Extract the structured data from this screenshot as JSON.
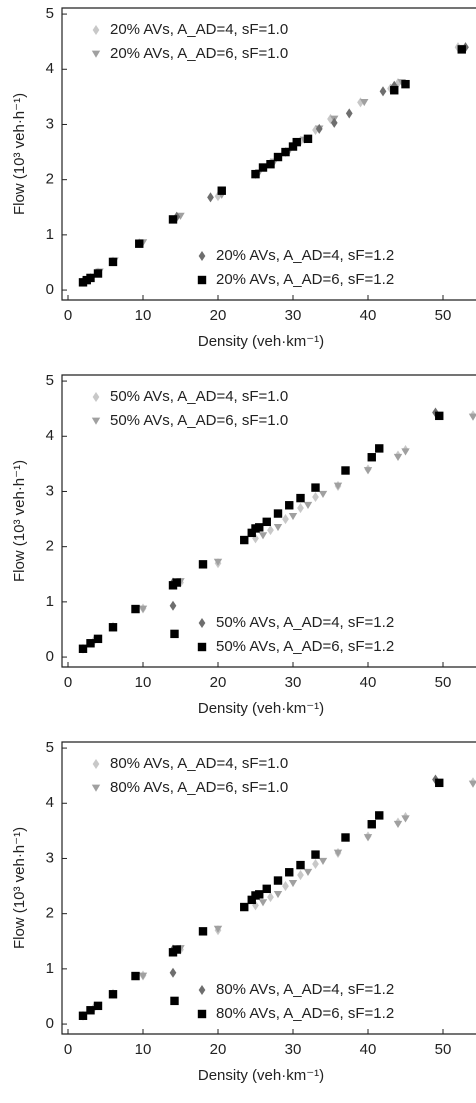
{
  "chart_data": [
    {
      "type": "scatter",
      "x_label": "Density (veh·km⁻¹)",
      "y_label": "Flow (10³ veh·h⁻¹)",
      "xlim": [
        -0.8,
        54.4
      ],
      "ylim": [
        -0.18,
        5.11
      ],
      "xticks": [
        0,
        10,
        20,
        30,
        40,
        50
      ],
      "yticks": [
        0,
        1,
        2,
        3,
        4,
        5
      ],
      "series": [
        {
          "name": "20% AVs, A_AD=4, sF=1.0",
          "color": "#c8c8c8",
          "marker": "diamond",
          "legend_loc": "upper left",
          "x": [
            2,
            3,
            4,
            6,
            9.5,
            14.5,
            20,
            25,
            27,
            29,
            31,
            33,
            35,
            39,
            43,
            44,
            52
          ],
          "y": [
            0.15,
            0.22,
            0.32,
            0.52,
            0.85,
            1.32,
            1.7,
            2.1,
            2.3,
            2.5,
            2.7,
            2.9,
            3.1,
            3.4,
            3.65,
            3.75,
            4.4
          ]
        },
        {
          "name": "20% AVs, A_AD=6, sF=1.0",
          "color": "#a0a0a0",
          "marker": "triangle",
          "legend_loc": "upper left",
          "x": [
            2.2,
            3.3,
            4.2,
            6.2,
            10,
            15,
            20.5,
            25.5,
            27.5,
            29.5,
            31.5,
            33.5,
            35.5,
            39.5,
            43.5,
            44.5,
            52.5
          ],
          "y": [
            0.15,
            0.23,
            0.33,
            0.53,
            0.86,
            1.34,
            1.72,
            2.13,
            2.32,
            2.52,
            2.72,
            2.92,
            3.1,
            3.4,
            3.66,
            3.76,
            4.38
          ]
        },
        {
          "name": "20% AVs, A_AD=4, sF=1.2",
          "color": "#6e6e6e",
          "marker": "diamond",
          "legend_loc": "lower right",
          "x": [
            14.5,
            19,
            33.5,
            35.5,
            37.5,
            42,
            43.5,
            53
          ],
          "y": [
            1.33,
            1.68,
            2.92,
            3.03,
            3.2,
            3.6,
            3.7,
            4.4
          ]
        },
        {
          "name": "20% AVs, A_AD=6, sF=1.2",
          "color": "#000000",
          "marker": "square",
          "legend_loc": "lower right",
          "x": [
            2,
            2.5,
            3,
            4,
            6,
            9.5,
            14,
            20.5,
            25,
            26,
            27,
            28,
            29,
            30,
            30.5,
            32,
            43.5,
            45,
            52.5
          ],
          "y": [
            0.14,
            0.18,
            0.22,
            0.3,
            0.51,
            0.84,
            1.28,
            1.8,
            2.1,
            2.22,
            2.28,
            2.41,
            2.5,
            2.6,
            2.68,
            2.74,
            3.62,
            3.73,
            4.36
          ]
        }
      ]
    },
    {
      "type": "scatter",
      "x_label": "Density (veh·km⁻¹)",
      "y_label": "Flow (10³ veh·h⁻¹)",
      "xlim": [
        -0.8,
        54.4
      ],
      "ylim": [
        -0.18,
        5.11
      ],
      "xticks": [
        0,
        10,
        20,
        30,
        40,
        50
      ],
      "yticks": [
        0,
        1,
        2,
        3,
        4,
        5
      ],
      "series": [
        {
          "name": "50% AVs, A_AD=4, sF=1.0",
          "color": "#c8c8c8",
          "marker": "diamond",
          "legend_loc": "upper left",
          "x": [
            2,
            3.5,
            6,
            10,
            15,
            20,
            25,
            27,
            29,
            31,
            33,
            36,
            40,
            44,
            45,
            54
          ],
          "y": [
            0.15,
            0.3,
            0.55,
            0.88,
            1.35,
            1.7,
            2.15,
            2.3,
            2.5,
            2.7,
            2.9,
            3.1,
            3.4,
            3.65,
            3.75,
            4.38
          ]
        },
        {
          "name": "50% AVs, A_AD=6, sF=1.0",
          "color": "#a0a0a0",
          "marker": "triangle",
          "legend_loc": "upper left",
          "x": [
            2,
            4,
            6,
            10,
            15,
            20,
            26,
            28,
            30,
            32,
            34,
            36,
            40,
            44,
            45,
            54
          ],
          "y": [
            0.15,
            0.32,
            0.54,
            0.87,
            1.37,
            1.72,
            2.2,
            2.35,
            2.55,
            2.75,
            2.95,
            3.1,
            3.38,
            3.62,
            3.72,
            4.35
          ]
        },
        {
          "name": "50% AVs, A_AD=4, sF=1.2",
          "color": "#6e6e6e",
          "marker": "diamond",
          "legend_loc": "lower right",
          "x": [
            14,
            14,
            49
          ],
          "y": [
            0.93,
            1.35,
            4.43
          ]
        },
        {
          "name": "50% AVs, A_AD=6, sF=1.2",
          "color": "#000000",
          "marker": "square",
          "legend_loc": "lower right",
          "x": [
            2,
            3,
            4,
            6,
            9,
            14,
            14.2,
            14.5,
            18,
            23.5,
            24.5,
            25,
            25.5,
            26.5,
            28,
            29.5,
            31,
            33,
            37,
            40.5,
            41.5,
            49.5
          ],
          "y": [
            0.15,
            0.25,
            0.33,
            0.54,
            0.87,
            1.3,
            0.42,
            1.35,
            1.68,
            2.12,
            2.25,
            2.33,
            2.35,
            2.45,
            2.6,
            2.75,
            2.88,
            3.07,
            3.38,
            3.62,
            3.78,
            4.37
          ]
        }
      ]
    },
    {
      "type": "scatter",
      "x_label": "Density (veh·km⁻¹)",
      "y_label": "Flow (10³ veh·h⁻¹)",
      "xlim": [
        -0.8,
        54.4
      ],
      "ylim": [
        -0.18,
        5.11
      ],
      "xticks": [
        0,
        10,
        20,
        30,
        40,
        50
      ],
      "yticks": [
        0,
        1,
        2,
        3,
        4,
        5
      ],
      "series": [
        {
          "name": "80% AVs, A_AD=4, sF=1.0",
          "color": "#c8c8c8",
          "marker": "diamond",
          "legend_loc": "upper left",
          "x": [
            2,
            3.5,
            6,
            10,
            15,
            20,
            25,
            27,
            29,
            31,
            33,
            36,
            40,
            44,
            45,
            54
          ],
          "y": [
            0.15,
            0.3,
            0.55,
            0.88,
            1.35,
            1.7,
            2.15,
            2.3,
            2.5,
            2.7,
            2.9,
            3.1,
            3.4,
            3.65,
            3.75,
            4.38
          ]
        },
        {
          "name": "80% AVs, A_AD=6, sF=1.0",
          "color": "#a0a0a0",
          "marker": "triangle",
          "legend_loc": "upper left",
          "x": [
            2,
            4,
            6,
            10,
            15,
            20,
            26,
            28,
            30,
            32,
            34,
            36,
            40,
            44,
            45,
            54
          ],
          "y": [
            0.15,
            0.32,
            0.54,
            0.87,
            1.37,
            1.72,
            2.2,
            2.35,
            2.55,
            2.75,
            2.95,
            3.1,
            3.38,
            3.62,
            3.72,
            4.35
          ]
        },
        {
          "name": "80% AVs, A_AD=4, sF=1.2",
          "color": "#6e6e6e",
          "marker": "diamond",
          "legend_loc": "lower right",
          "x": [
            14,
            14,
            49
          ],
          "y": [
            0.93,
            1.35,
            4.43
          ]
        },
        {
          "name": "80% AVs, A_AD=6, sF=1.2",
          "color": "#000000",
          "marker": "square",
          "legend_loc": "lower right",
          "x": [
            2,
            3,
            4,
            6,
            9,
            14,
            14.2,
            14.5,
            18,
            23.5,
            24.5,
            25,
            25.5,
            26.5,
            28,
            29.5,
            31,
            33,
            37,
            40.5,
            41.5,
            49.5
          ],
          "y": [
            0.15,
            0.25,
            0.33,
            0.54,
            0.87,
            1.3,
            0.42,
            1.35,
            1.68,
            2.12,
            2.25,
            2.33,
            2.35,
            2.45,
            2.6,
            2.75,
            2.88,
            3.07,
            3.38,
            3.62,
            3.78,
            4.37
          ]
        }
      ]
    }
  ]
}
